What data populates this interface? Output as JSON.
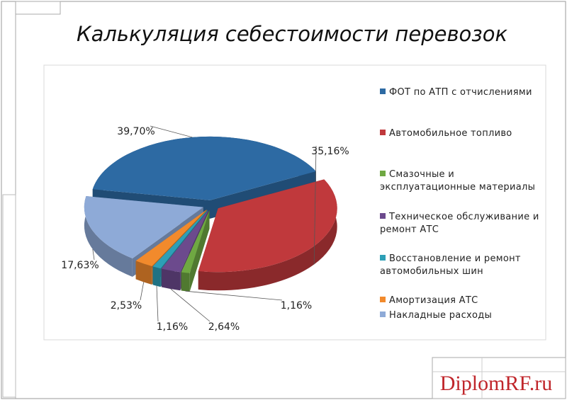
{
  "chart_data": {
    "type": "pie",
    "title": "Калькуляция себестоимости перевозок",
    "categories": [
      "ФОТ по АТП с отчислениями",
      "Автомобильное топливо",
      "Смазочные и эксплуатационные материалы",
      "Техническое обслуживание и ремонт АТС",
      "Восстановление и ремонт автомобильных шин",
      "Амортизация АТС",
      "Накладные расходы"
    ],
    "values": [
      39.7,
      35.16,
      1.16,
      2.64,
      1.16,
      2.53,
      17.63
    ],
    "value_labels": [
      "39,70%",
      "35,16%",
      "1,16%",
      "2,64%",
      "1,16%",
      "2,53%",
      "17,63%"
    ],
    "colors": [
      "#2d6aa3",
      "#c0393c",
      "#6fa842",
      "#6c4a8d",
      "#2d9fb6",
      "#f28a2c",
      "#8eaad7"
    ],
    "legend": "right"
  },
  "watermark": "DiplomRF.ru"
}
